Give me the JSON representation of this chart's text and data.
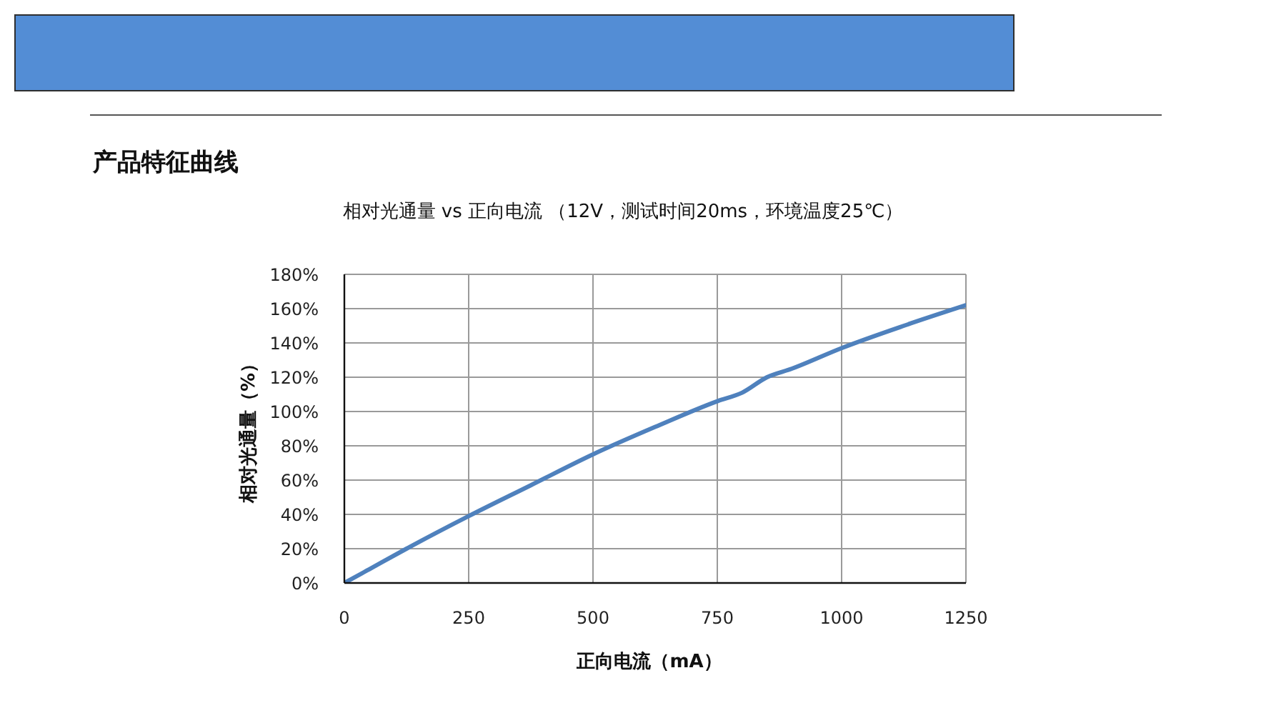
{
  "chart_data": {
    "type": "line",
    "title": "产品特征曲线",
    "subtitle": "相对光通量 vs 正向电流 （12V，测试时间20ms，环境温度25℃）",
    "xlabel": "正向电流（mA）",
    "ylabel": "相对光通量（%）",
    "x": [
      0,
      50,
      125,
      250,
      375,
      500,
      625,
      750,
      800,
      850,
      900,
      1000,
      1125,
      1250
    ],
    "values": [
      0,
      8,
      20,
      39,
      57,
      75,
      91,
      106,
      111,
      120,
      125,
      137,
      150,
      162
    ],
    "color": "#4f81bd",
    "xlim": [
      0,
      1250
    ],
    "xticks": [
      0,
      250,
      500,
      750,
      1000,
      1250
    ],
    "ylim": [
      0,
      180
    ],
    "yticks": [
      {
        "value": 0,
        "label": "0%"
      },
      {
        "value": 20,
        "label": "20%"
      },
      {
        "value": 40,
        "label": "40%"
      },
      {
        "value": 60,
        "label": "60%"
      },
      {
        "value": 80,
        "label": "80%"
      },
      {
        "value": 100,
        "label": "100%"
      },
      {
        "value": 120,
        "label": "120%"
      },
      {
        "value": 140,
        "label": "140%"
      },
      {
        "value": 160,
        "label": "160%"
      },
      {
        "value": 180,
        "label": "180%"
      }
    ],
    "grid": true,
    "marker": "none",
    "line_style": "solid"
  }
}
